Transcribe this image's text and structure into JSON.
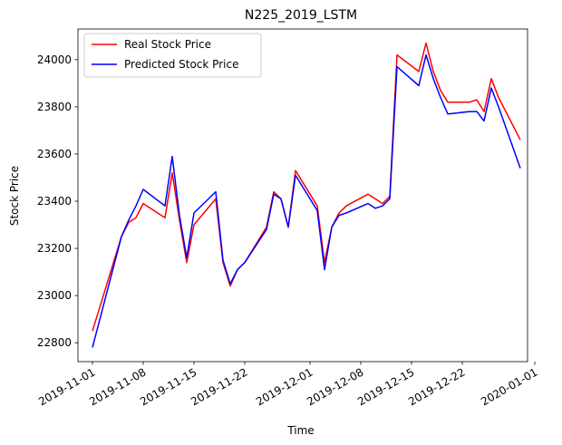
{
  "chart_data": {
    "type": "line",
    "title": "N225_2019_LSTM",
    "xlabel": "Time",
    "ylabel": "Stock Price",
    "x_type": "date",
    "xlim": [
      "2019-10-30",
      "2019-12-31"
    ],
    "ylim": [
      22720,
      24130
    ],
    "x_ticks": [
      "2019-11-01",
      "2019-11-08",
      "2019-11-15",
      "2019-11-22",
      "2019-12-01",
      "2019-12-08",
      "2019-12-15",
      "2019-12-22",
      "2020-01-01"
    ],
    "y_ticks": [
      22800,
      23000,
      23200,
      23400,
      23600,
      23800,
      24000
    ],
    "grid": false,
    "legend_position": "top-left",
    "x": [
      "2019-11-01",
      "2019-11-05",
      "2019-11-06",
      "2019-11-07",
      "2019-11-08",
      "2019-11-11",
      "2019-11-12",
      "2019-11-13",
      "2019-11-14",
      "2019-11-15",
      "2019-11-18",
      "2019-11-19",
      "2019-11-20",
      "2019-11-21",
      "2019-11-22",
      "2019-11-25",
      "2019-11-26",
      "2019-11-27",
      "2019-11-28",
      "2019-11-29",
      "2019-12-02",
      "2019-12-03",
      "2019-12-04",
      "2019-12-05",
      "2019-12-06",
      "2019-12-09",
      "2019-12-10",
      "2019-12-11",
      "2019-12-12",
      "2019-12-13",
      "2019-12-16",
      "2019-12-17",
      "2019-12-18",
      "2019-12-19",
      "2019-12-20",
      "2019-12-23",
      "2019-12-24",
      "2019-12-25",
      "2019-12-26",
      "2019-12-27",
      "2019-12-30"
    ],
    "series": [
      {
        "name": "Real Stock Price",
        "color": "#ff0000",
        "values": [
          22850,
          23250,
          23310,
          23330,
          23390,
          23330,
          23520,
          23320,
          23140,
          23300,
          23410,
          23140,
          23040,
          23110,
          23140,
          23290,
          23440,
          23410,
          23290,
          23530,
          23380,
          23140,
          23290,
          23350,
          23380,
          23430,
          23410,
          23390,
          23420,
          24020,
          23950,
          24070,
          23950,
          23870,
          23820,
          23820,
          23830,
          23780,
          23920,
          23840,
          23660
        ]
      },
      {
        "name": "Predicted Stock Price",
        "color": "#0000ff",
        "values": [
          22780,
          23250,
          23320,
          23380,
          23450,
          23380,
          23590,
          23340,
          23160,
          23350,
          23440,
          23150,
          23050,
          23110,
          23140,
          23280,
          23430,
          23410,
          23290,
          23510,
          23360,
          23110,
          23290,
          23340,
          23350,
          23390,
          23370,
          23380,
          23410,
          23970,
          23890,
          24020,
          23920,
          23840,
          23770,
          23780,
          23780,
          23740,
          23880,
          23800,
          23540
        ]
      }
    ]
  }
}
